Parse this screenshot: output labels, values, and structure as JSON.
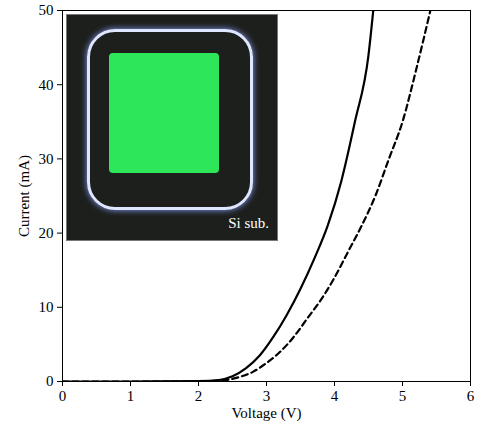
{
  "chart_data": {
    "type": "line",
    "x_label": "Voltage (V)",
    "y_label": "Current (mA)",
    "xlim": [
      0,
      6
    ],
    "xticks": [
      0,
      1,
      2,
      3,
      4,
      5,
      6
    ],
    "ylim": [
      0,
      50
    ],
    "yticks": [
      0,
      10,
      20,
      30,
      40,
      50
    ],
    "grid": false,
    "series": [
      {
        "color": "#000000",
        "line_style": "solid",
        "x": [
          0,
          1,
          2,
          2.3,
          2.5,
          2.7,
          2.9,
          3.1,
          3.3,
          3.5,
          3.7,
          3.9,
          4.1,
          4.3,
          4.5,
          4.57
        ],
        "values": [
          0,
          0,
          0.05,
          0.2,
          0.7,
          1.8,
          3.5,
          6,
          9,
          12.5,
          16.5,
          21,
          27,
          35,
          44,
          50
        ]
      },
      {
        "color": "#000000",
        "line_style": "dashed",
        "x": [
          0,
          2,
          2.4,
          2.6,
          2.8,
          3.0,
          3.2,
          3.4,
          3.6,
          3.8,
          4.0,
          4.2,
          4.4,
          4.6,
          4.8,
          5.0,
          5.2,
          5.41
        ],
        "values": [
          0,
          0,
          0.2,
          0.6,
          1.3,
          2.5,
          4,
          6,
          8.5,
          11,
          14,
          17.5,
          21,
          25,
          30,
          35,
          42,
          50
        ]
      }
    ],
    "annotations": [
      {
        "text": "Si sub."
      }
    ]
  }
}
